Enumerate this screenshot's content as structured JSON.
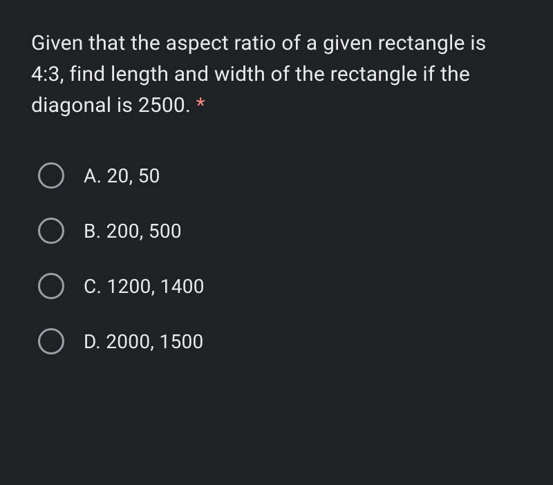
{
  "question": {
    "text": "Given that the aspect ratio of a given rectangle is 4:3, find length and width of the rectangle if the diagonal is 2500. ",
    "required_marker": "*",
    "required_color": "#f28b82"
  },
  "options": [
    {
      "label": "A. 20, 50"
    },
    {
      "label": "B. 200, 500"
    },
    {
      "label": "C. 1200, 1400"
    },
    {
      "label": "D. 2000, 1500"
    }
  ],
  "colors": {
    "background": "#202124",
    "text": "#e8eaed",
    "radio_border": "#9aa0a6"
  },
  "typography": {
    "question_fontsize": 30,
    "option_fontsize": 28,
    "font_family": "Google Sans, Roboto, Arial, sans-serif"
  }
}
